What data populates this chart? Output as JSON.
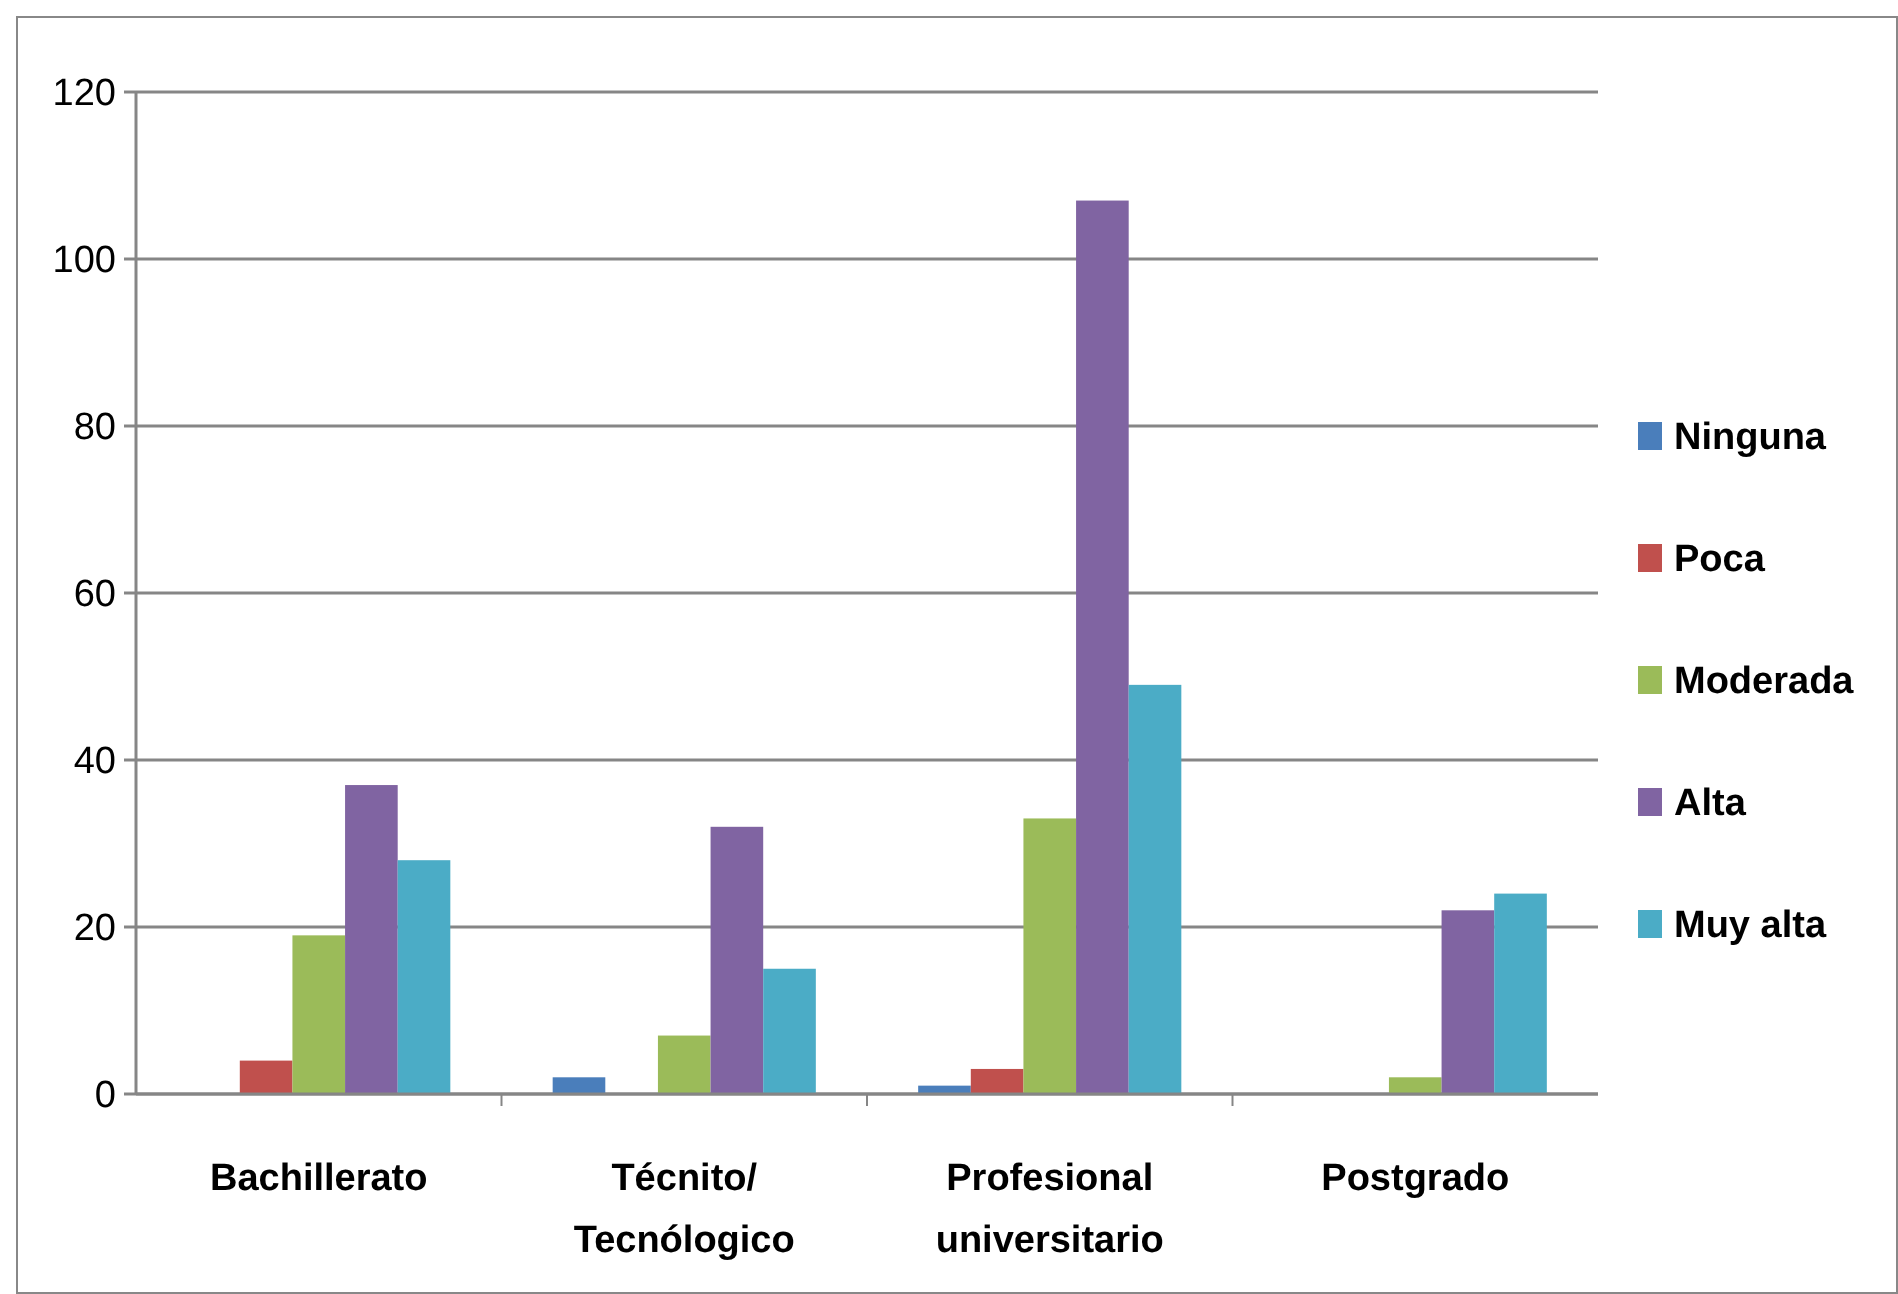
{
  "chart_data": {
    "type": "bar",
    "categories": [
      "Bachillerato",
      "Técnito/ Tecnólogico",
      "Profesional universitario",
      "Postgrado"
    ],
    "series": [
      {
        "name": "Ninguna",
        "color": "#4a7ebb",
        "values": [
          0,
          2,
          1,
          0
        ]
      },
      {
        "name": "Poca",
        "color": "#c0504d",
        "values": [
          4,
          0,
          3,
          0
        ]
      },
      {
        "name": "Moderada",
        "color": "#9bbb59",
        "values": [
          19,
          7,
          33,
          2
        ]
      },
      {
        "name": "Alta",
        "color": "#8064a2",
        "values": [
          37,
          32,
          107,
          22
        ]
      },
      {
        "name": "Muy alta",
        "color": "#4bacc6",
        "values": [
          28,
          15,
          49,
          24
        ]
      }
    ],
    "ylim": [
      0,
      120
    ],
    "yticks": [
      0,
      20,
      40,
      60,
      80,
      100,
      120
    ],
    "grid": "y",
    "legend": "right"
  }
}
